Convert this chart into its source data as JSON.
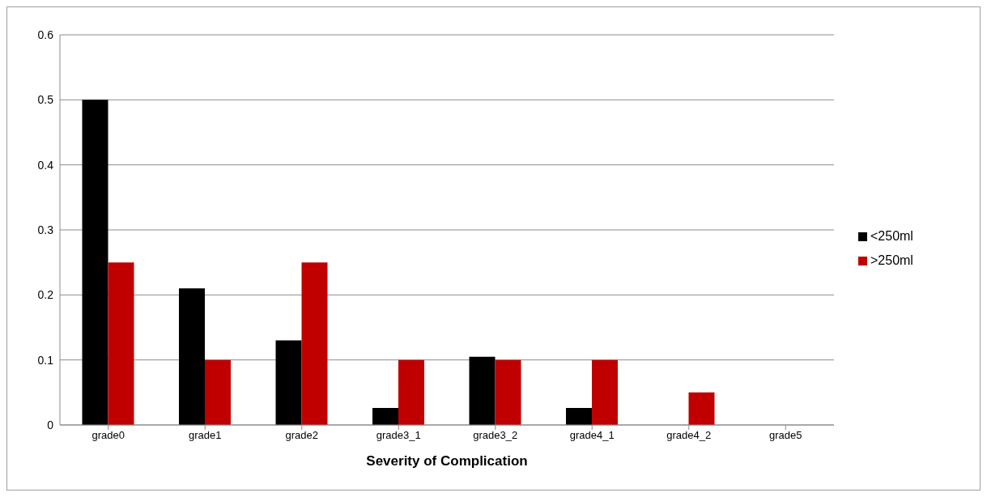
{
  "chart_data": {
    "type": "bar",
    "xlabel": "Severity of Complication",
    "categories": [
      "grade0",
      "grade1",
      "grade2",
      "grade3_1",
      "grade3_2",
      "grade4_1",
      "grade4_2",
      "grade5"
    ],
    "series": [
      {
        "name": "<250ml",
        "color": "#000000",
        "values": [
          0.5,
          0.21,
          0.13,
          0.026,
          0.105,
          0.026,
          0,
          0
        ]
      },
      {
        "name": ">250ml",
        "color": "#c00000",
        "values": [
          0.25,
          0.1,
          0.25,
          0.1,
          0.1,
          0.1,
          0.05,
          0
        ]
      }
    ],
    "ylim": [
      0,
      0.6
    ],
    "yticks": [
      0,
      0.1,
      0.2,
      0.3,
      0.4,
      0.5,
      0.6
    ],
    "grid": "y",
    "legend": "right"
  }
}
